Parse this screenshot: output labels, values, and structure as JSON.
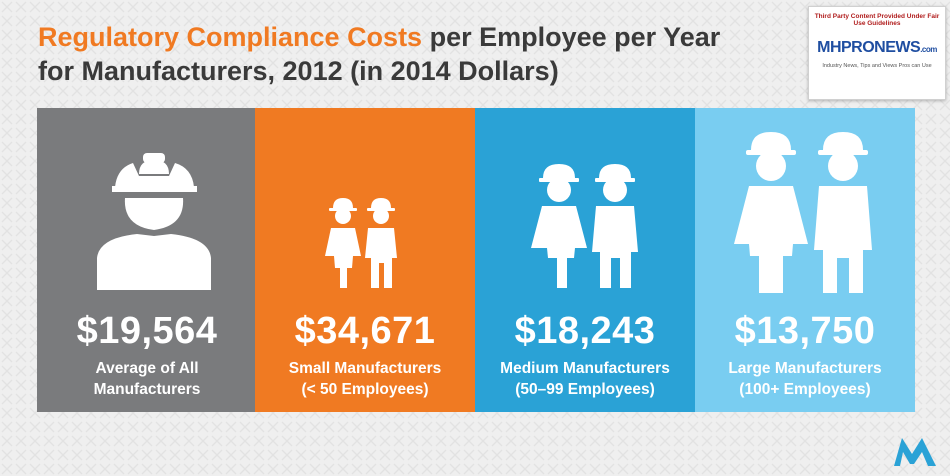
{
  "header": {
    "title_accent": "Regulatory Compliance Costs",
    "title_rest": " per Employee per Year",
    "title_line2": "for Manufacturers, 2012 (in 2014 Dollars)"
  },
  "badge": {
    "notice": "Third Party Content Provided Under Fair Use Guidelines",
    "logo": "MHPRONEWS",
    "logo_suffix": ".com",
    "tagline": "Industry News, Tips and Views Pros can Use"
  },
  "panels": [
    {
      "amount": "$19,564",
      "label_line1": "Average of All",
      "label_line2": "Manufacturers",
      "color": "#7a7b7d",
      "icon": "worker-bust-icon"
    },
    {
      "amount": "$34,671",
      "label_line1": "Small Manufacturers",
      "label_line2": "(< 50 Employees)",
      "color": "#f07a22",
      "icon": "small-workers-pair-icon"
    },
    {
      "amount": "$18,243",
      "label_line1": "Medium Manufacturers",
      "label_line2": "(50–99 Employees)",
      "color": "#2aa2d6",
      "icon": "medium-workers-pair-icon"
    },
    {
      "amount": "$13,750",
      "label_line1": "Large Manufacturers",
      "label_line2": "(100+ Employees)",
      "color": "#79cdf1",
      "icon": "large-workers-pair-icon"
    }
  ],
  "colors": {
    "accent": "#f07a22",
    "title": "#3a3a3a",
    "background": "#efefef",
    "logo": "#2aa2d6"
  }
}
